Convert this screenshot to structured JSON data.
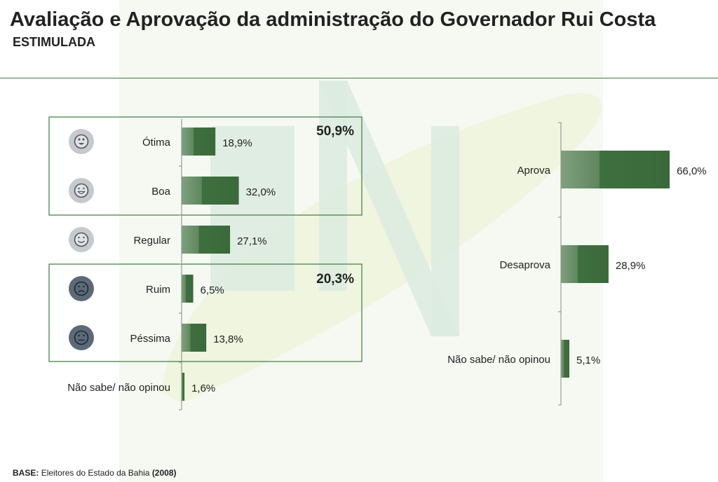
{
  "title": "Avaliação e Aprovação da administração do Governador Rui Costa",
  "subtitle": "ESTIMULADA",
  "footer": {
    "base_label": "BASE:",
    "base_text": "Eleitores do Estado da Bahia",
    "year": "(2008)"
  },
  "colors": {
    "bar_dark": "#3f6e3f",
    "bar_light": "#8fb08f",
    "rule": "#3d7a3d",
    "face_light": "#c5cacf",
    "face_dark": "#5c6a78"
  },
  "chart_data": [
    {
      "type": "bar",
      "orientation": "horizontal",
      "categories": [
        "Ótima",
        "Boa",
        "Regular",
        "Ruim",
        "Péssima",
        "Não sabe/ não opinou"
      ],
      "values": [
        18.9,
        32.0,
        27.1,
        6.5,
        13.8,
        1.6
      ],
      "value_labels": [
        "18,9%",
        "32,0%",
        "27,1%",
        "6,5%",
        "13,8%",
        "1,6%"
      ],
      "icons": [
        "heart-eyes-face-icon",
        "grin-face-icon",
        "smile-face-icon",
        "sad-face-icon",
        "frown-face-icon",
        ""
      ],
      "groups": [
        {
          "members": [
            "Ótima",
            "Boa"
          ],
          "total_label": "50,9%"
        },
        {
          "members": [
            "Ruim",
            "Péssima"
          ],
          "total_label": "20,3%"
        }
      ]
    },
    {
      "type": "bar",
      "orientation": "horizontal",
      "categories": [
        "Aprova",
        "Desaprova",
        "Não sabe/ não opinou"
      ],
      "values": [
        66.0,
        28.9,
        5.1
      ],
      "value_labels": [
        "66,0%",
        "28,9%",
        "5,1%"
      ]
    }
  ]
}
